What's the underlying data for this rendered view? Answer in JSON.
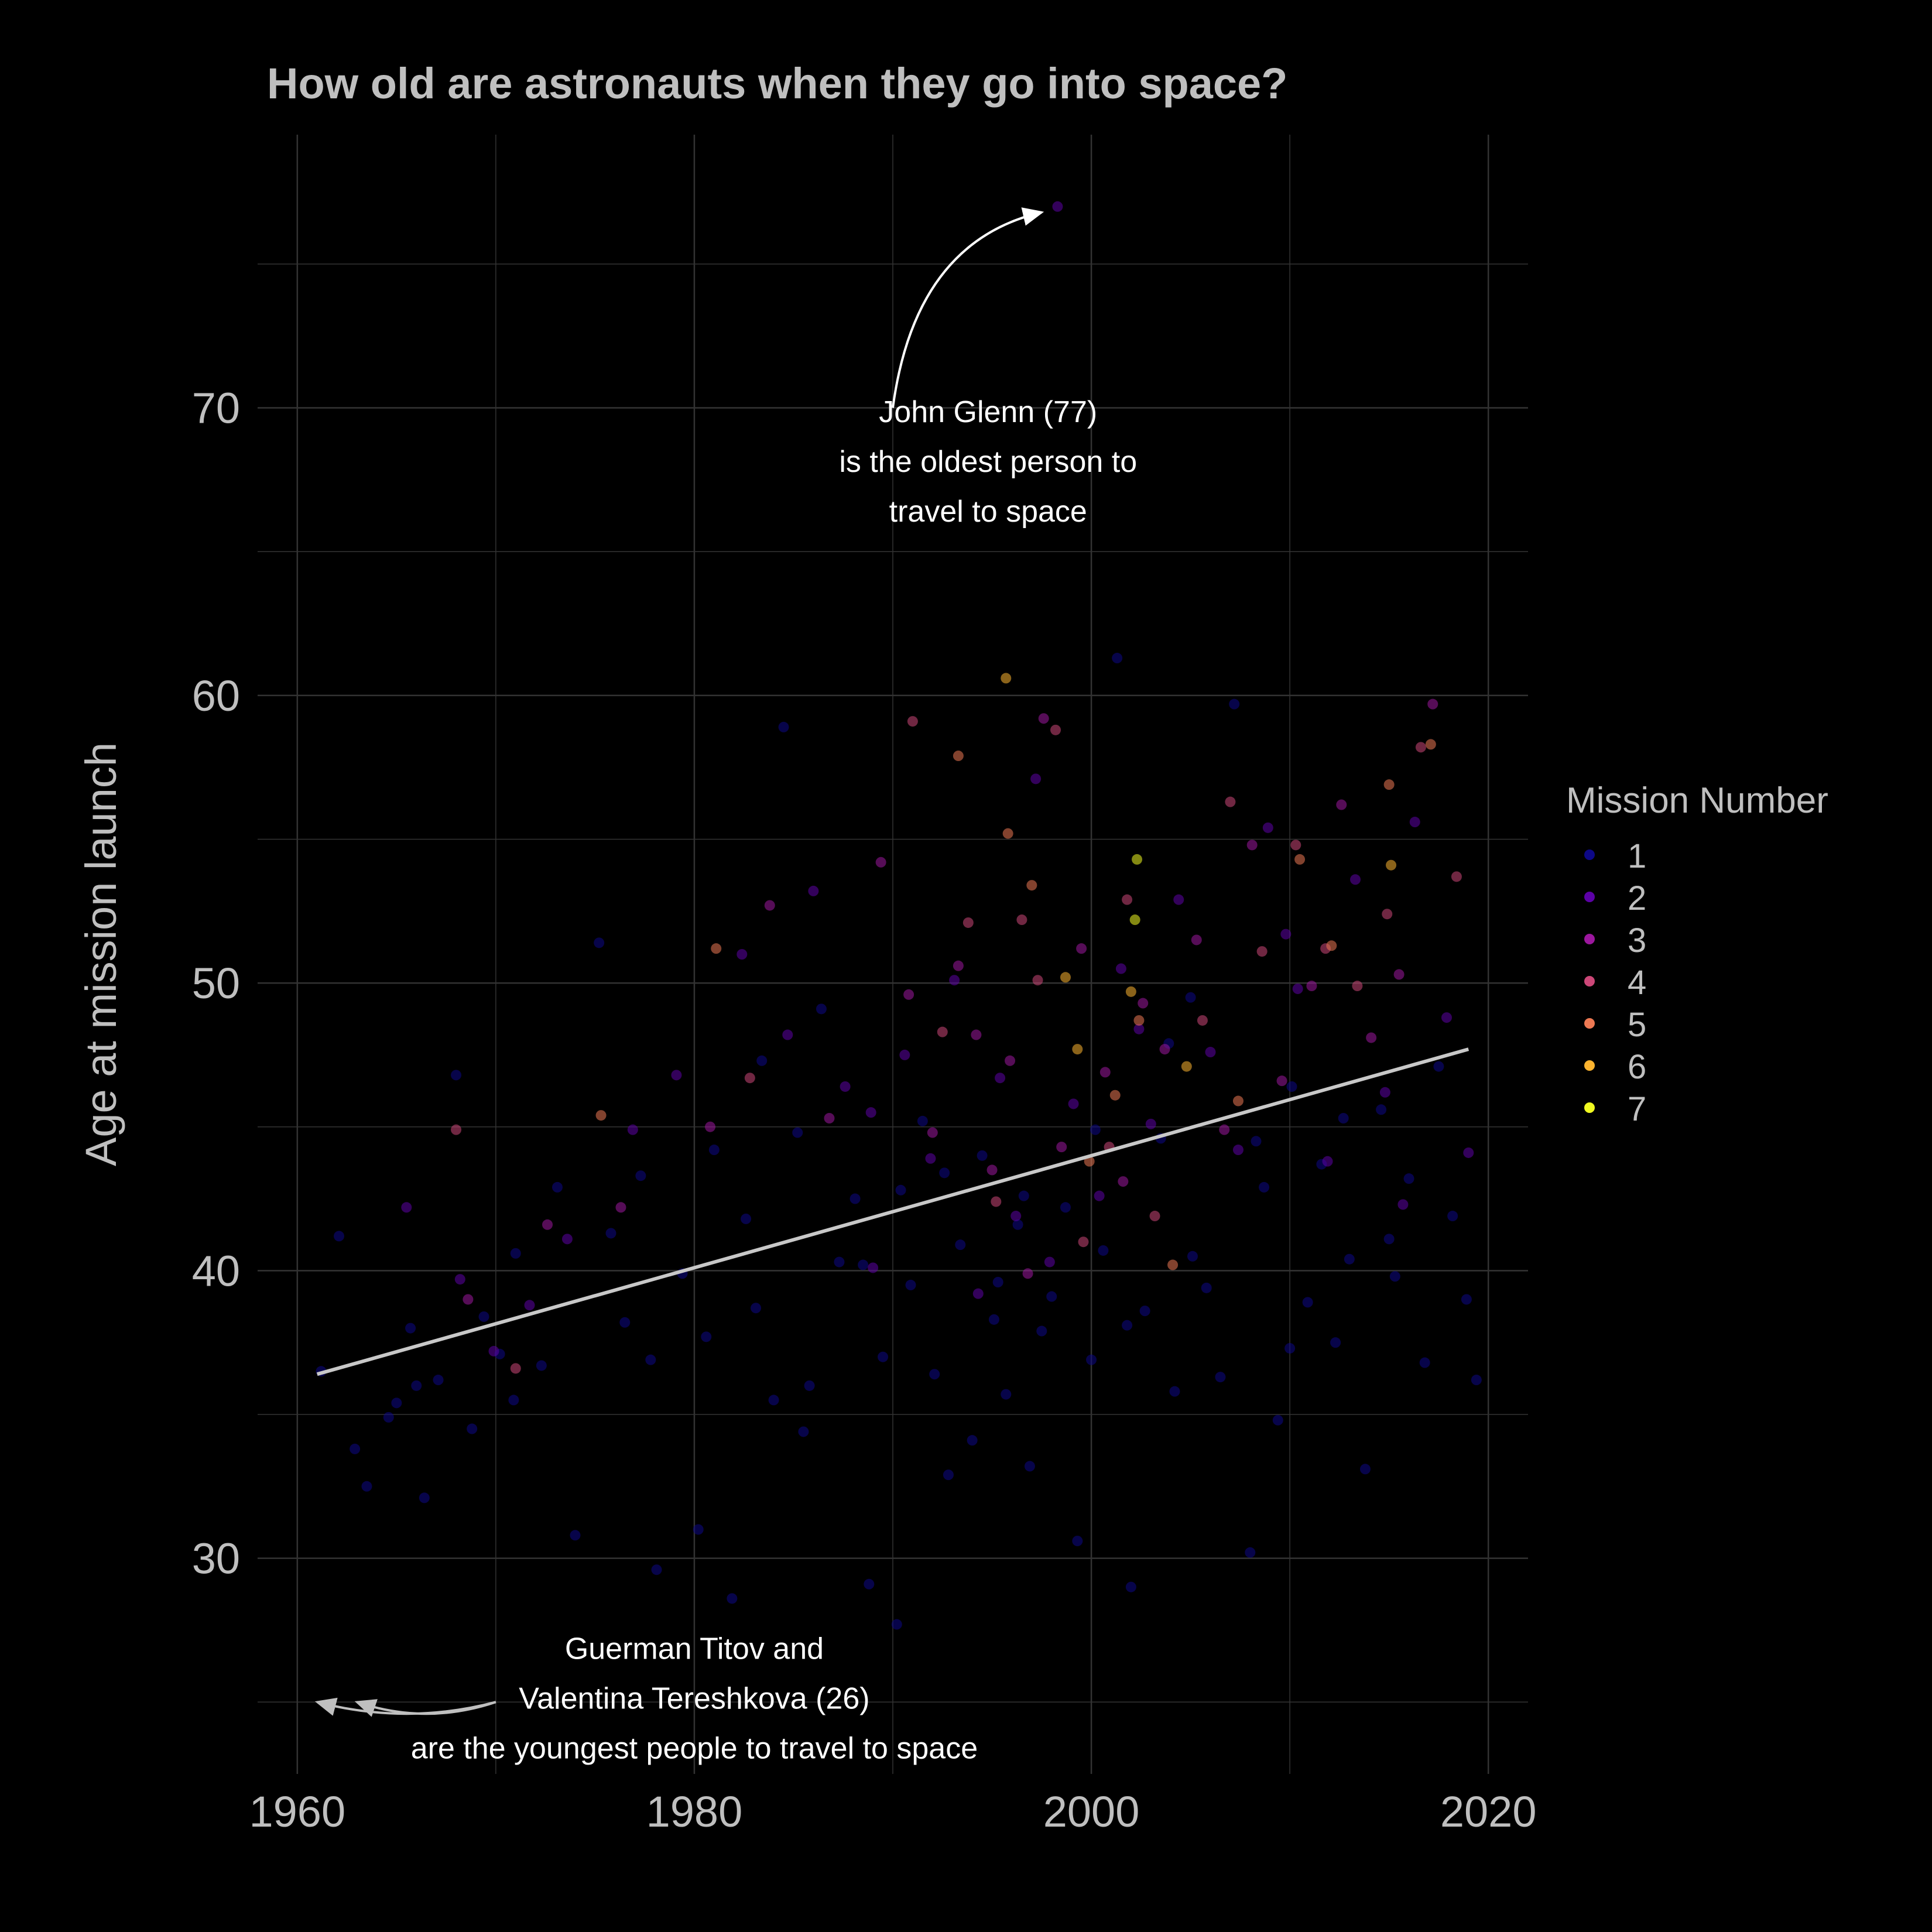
{
  "page": {
    "background": "#000000",
    "text_color": "#bfbfbf",
    "grid_color": "#333333"
  },
  "chart_data": {
    "type": "scatter",
    "title": "How old are astronauts when they go into space?",
    "xlabel": "",
    "ylabel": "Age at mission launch",
    "xlim": [
      1958,
      2022
    ],
    "ylim": [
      22.5,
      79.5
    ],
    "x_ticks": [
      1960,
      1980,
      2000,
      2020
    ],
    "x_tick_labels": [
      "1960",
      "1980",
      "2000",
      "2020"
    ],
    "y_ticks": [
      30,
      40,
      50,
      60,
      70
    ],
    "y_tick_labels": [
      "30",
      "40",
      "50",
      "60",
      "70"
    ],
    "grid": true,
    "point_opacity": 0.55,
    "legend": {
      "title": "Mission Number",
      "placement": "right",
      "entries": [
        {
          "label": "1",
          "color": "#0d0887"
        },
        {
          "label": "2",
          "color": "#5c01a6"
        },
        {
          "label": "3",
          "color": "#9c179e"
        },
        {
          "label": "4",
          "color": "#cc4778"
        },
        {
          "label": "5",
          "color": "#ed7953"
        },
        {
          "label": "6",
          "color": "#fdb42f"
        },
        {
          "label": "7",
          "color": "#f0f921"
        }
      ]
    },
    "trend_line": {
      "color": "#c8c8c8",
      "x": [
        1961,
        2019
      ],
      "y": [
        36.4,
        47.7
      ]
    },
    "notable_points": [
      {
        "x": 1998.3,
        "y": 77.0,
        "mission": 2,
        "label": "John Glenn"
      },
      {
        "x": 1961.5,
        "y": 25.9,
        "mission": 1,
        "label": "Guerman Titov"
      },
      {
        "x": 1963.5,
        "y": 26.0,
        "mission": 1,
        "label": "Valentina Tereshkova"
      }
    ],
    "annotations": [
      {
        "id": "glenn",
        "lines": [
          "John Glenn (77)",
          "is the oldest person to",
          "travel to space"
        ],
        "text_x": 1994.8,
        "text_y": 69.5,
        "arrow_from": [
          1990.0,
          70.0
        ],
        "arrow_to": [
          1997.5,
          76.8
        ]
      },
      {
        "id": "youngest",
        "lines": [
          "Guerman Titov and",
          "Valentina Tereshkova (26)",
          "are the youngest people to travel to space"
        ],
        "text_x": 1980.0,
        "text_y": 26.5,
        "arrow_from": [
          1970.0,
          25.0
        ],
        "arrow_to_list": [
          [
            1961.0,
            25.0
          ],
          [
            1963.0,
            25.0
          ]
        ]
      }
    ],
    "series": [
      {
        "name": "1",
        "mission": 1,
        "color": "#0d0887",
        "x": [
          1961.2,
          1962.1,
          1962.9,
          1963.5,
          1964.6,
          1965.0,
          1965.7,
          1966.4,
          1967.1,
          1968.0,
          1968.8,
          1969.4,
          1970.2,
          1971.0,
          1972.3,
          1973.1,
          1974.0,
          1975.2,
          1976.5,
          1977.3,
          1978.1,
          1979.4,
          1980.2,
          1981.0,
          1981.9,
          1982.6,
          1983.4,
          1984.0,
          1984.5,
          1985.2,
          1985.8,
          1986.4,
          1987.3,
          1988.1,
          1988.8,
          1989.5,
          1990.2,
          1990.9,
          1991.5,
          1992.1,
          1992.8,
          1993.4,
          1994.0,
          1994.5,
          1995.1,
          1995.7,
          1996.3,
          1996.9,
          1997.5,
          1998.0,
          1998.7,
          1999.3,
          2000.0,
          2000.6,
          2001.3,
          2002.0,
          2002.7,
          2003.5,
          2004.2,
          2005.0,
          2005.8,
          2006.5,
          2007.2,
          2008.0,
          2008.7,
          2009.4,
          2010.1,
          2010.9,
          2011.6,
          2012.3,
          2013.0,
          2013.8,
          2014.6,
          2015.3,
          2016.0,
          2016.8,
          2017.5,
          2018.2,
          2018.9,
          2019.4,
          1966.0,
          1970.9,
          1975.8,
          1980.6,
          1985.5,
          1990.4,
          1995.3,
          2000.2,
          2005.1,
          2010.0,
          2015.0,
          1983.1,
          1992.6,
          2003.9,
          2008.3,
          1977.8,
          1988.5,
          1996.6,
          2001.8,
          2012.7
        ],
        "y": [
          36.5,
          41.2,
          33.8,
          32.5,
          34.9,
          35.4,
          38.0,
          32.1,
          36.2,
          46.8,
          34.5,
          38.4,
          37.1,
          40.6,
          36.7,
          42.9,
          30.8,
          51.4,
          38.2,
          43.3,
          29.6,
          39.9,
          31.0,
          44.2,
          28.6,
          41.8,
          47.3,
          35.5,
          58.9,
          44.8,
          36.0,
          49.1,
          40.3,
          42.5,
          29.1,
          37.0,
          27.7,
          39.5,
          45.2,
          36.4,
          32.9,
          40.9,
          34.1,
          44.0,
          38.3,
          35.7,
          41.6,
          33.2,
          37.9,
          39.1,
          42.2,
          30.6,
          36.9,
          40.7,
          61.3,
          29.0,
          38.6,
          44.6,
          35.8,
          49.5,
          39.4,
          36.3,
          59.7,
          30.2,
          42.9,
          34.8,
          46.4,
          38.9,
          43.7,
          37.5,
          40.4,
          33.1,
          45.6,
          39.8,
          43.2,
          36.8,
          47.1,
          41.9,
          39.0,
          36.2,
          36.0,
          35.5,
          41.3,
          37.7,
          34.4,
          42.8,
          39.6,
          44.9,
          40.5,
          37.3,
          41.1,
          38.7,
          43.4,
          47.9,
          44.5,
          36.9,
          40.2,
          42.6,
          38.1,
          45.3
        ]
      },
      {
        "name": "2",
        "mission": 2,
        "color": "#5c01a6",
        "x": [
          1965.5,
          1968.2,
          1969.9,
          1973.6,
          1976.9,
          1979.1,
          1982.4,
          1984.7,
          1986.0,
          1987.6,
          1989.0,
          1990.6,
          1991.9,
          1993.1,
          1994.3,
          1995.4,
          1996.2,
          1997.2,
          1998.3,
          1999.1,
          2000.4,
          2001.5,
          2003.0,
          2004.4,
          2006.0,
          2007.4,
          2008.9,
          2010.4,
          2011.9,
          2013.3,
          2014.8,
          2016.3,
          2017.9,
          2019.0,
          1971.7,
          1988.9,
          1997.9,
          2002.4,
          2009.8,
          2015.7
        ],
        "y": [
          42.2,
          39.7,
          37.2,
          41.1,
          44.9,
          46.8,
          51.0,
          48.2,
          53.2,
          46.4,
          40.1,
          47.5,
          43.9,
          50.1,
          39.2,
          46.7,
          41.9,
          57.1,
          77.0,
          45.8,
          42.6,
          50.5,
          45.1,
          52.9,
          47.6,
          44.2,
          55.4,
          49.8,
          43.8,
          53.6,
          46.2,
          55.6,
          48.8,
          44.1,
          38.8,
          45.5,
          40.3,
          48.4,
          51.7,
          42.3
        ]
      },
      {
        "name": "3",
        "mission": 3,
        "color": "#9c179e",
        "x": [
          1968.6,
          1972.6,
          1976.3,
          1980.8,
          1983.8,
          1986.8,
          1989.4,
          1990.8,
          1992.0,
          1993.3,
          1994.2,
          1995.0,
          1995.9,
          1996.8,
          1997.6,
          1998.5,
          1999.5,
          2000.7,
          2001.6,
          2002.6,
          2003.7,
          2005.3,
          2006.7,
          2008.1,
          2009.6,
          2011.1,
          2012.6,
          2014.1,
          2015.5,
          2017.2
        ],
        "y": [
          39.0,
          41.6,
          42.2,
          45.0,
          52.7,
          45.3,
          54.2,
          49.6,
          44.8,
          50.6,
          48.2,
          43.5,
          47.3,
          39.9,
          59.2,
          44.3,
          51.2,
          46.9,
          43.1,
          49.3,
          47.7,
          51.5,
          44.9,
          54.8,
          46.6,
          49.9,
          56.2,
          48.1,
          50.3,
          59.7
        ]
      },
      {
        "name": "4",
        "mission": 4,
        "color": "#cc4778",
        "x": [
          1968.0,
          1971.0,
          1982.8,
          1991.0,
          1992.5,
          1993.8,
          1995.2,
          1996.5,
          1997.3,
          1998.2,
          1999.6,
          2000.9,
          2001.8,
          2003.2,
          2005.6,
          2007.0,
          2008.6,
          2010.3,
          2011.8,
          2013.4,
          2014.9,
          2016.6,
          2018.4
        ],
        "y": [
          44.9,
          36.6,
          46.7,
          59.1,
          48.3,
          52.1,
          42.4,
          52.2,
          50.1,
          58.8,
          41.0,
          44.3,
          52.9,
          41.9,
          48.7,
          56.3,
          51.1,
          54.8,
          51.2,
          49.9,
          52.4,
          58.2,
          53.7
        ]
      },
      {
        "name": "5",
        "mission": 5,
        "color": "#ed7953",
        "x": [
          1975.3,
          1981.1,
          1993.3,
          1995.8,
          1997.0,
          1999.9,
          2001.2,
          2002.4,
          2004.1,
          2007.4,
          2010.5,
          2012.1,
          2015.0,
          2017.1
        ],
        "y": [
          45.4,
          51.2,
          57.9,
          55.2,
          53.4,
          43.8,
          46.1,
          48.7,
          40.2,
          45.9,
          54.3,
          51.3,
          56.9,
          58.3
        ]
      },
      {
        "name": "6",
        "mission": 6,
        "color": "#fdb42f",
        "x": [
          1995.7,
          1998.7,
          1999.3,
          2002.0,
          2004.8,
          2015.1
        ],
        "y": [
          60.6,
          50.2,
          47.7,
          49.7,
          47.1,
          54.1
        ]
      },
      {
        "name": "7",
        "mission": 7,
        "color": "#f0f921",
        "x": [
          2002.3,
          2002.2
        ],
        "y": [
          54.3,
          52.2
        ]
      }
    ]
  }
}
